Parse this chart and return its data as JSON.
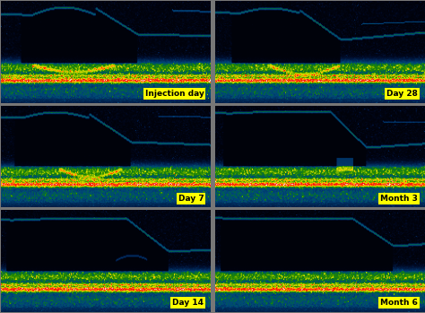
{
  "labels": [
    "Injection day",
    "Day 28",
    "Day 7",
    "Month 3",
    "Day 14",
    "Month 6"
  ],
  "grid_rows": 3,
  "grid_cols": 2,
  "label_bg": "#ffff00",
  "label_fg": "#000000",
  "label_fontsize": 6.5,
  "gap_color": "#777777",
  "fig_width": 4.74,
  "fig_height": 3.49,
  "dpi": 100
}
